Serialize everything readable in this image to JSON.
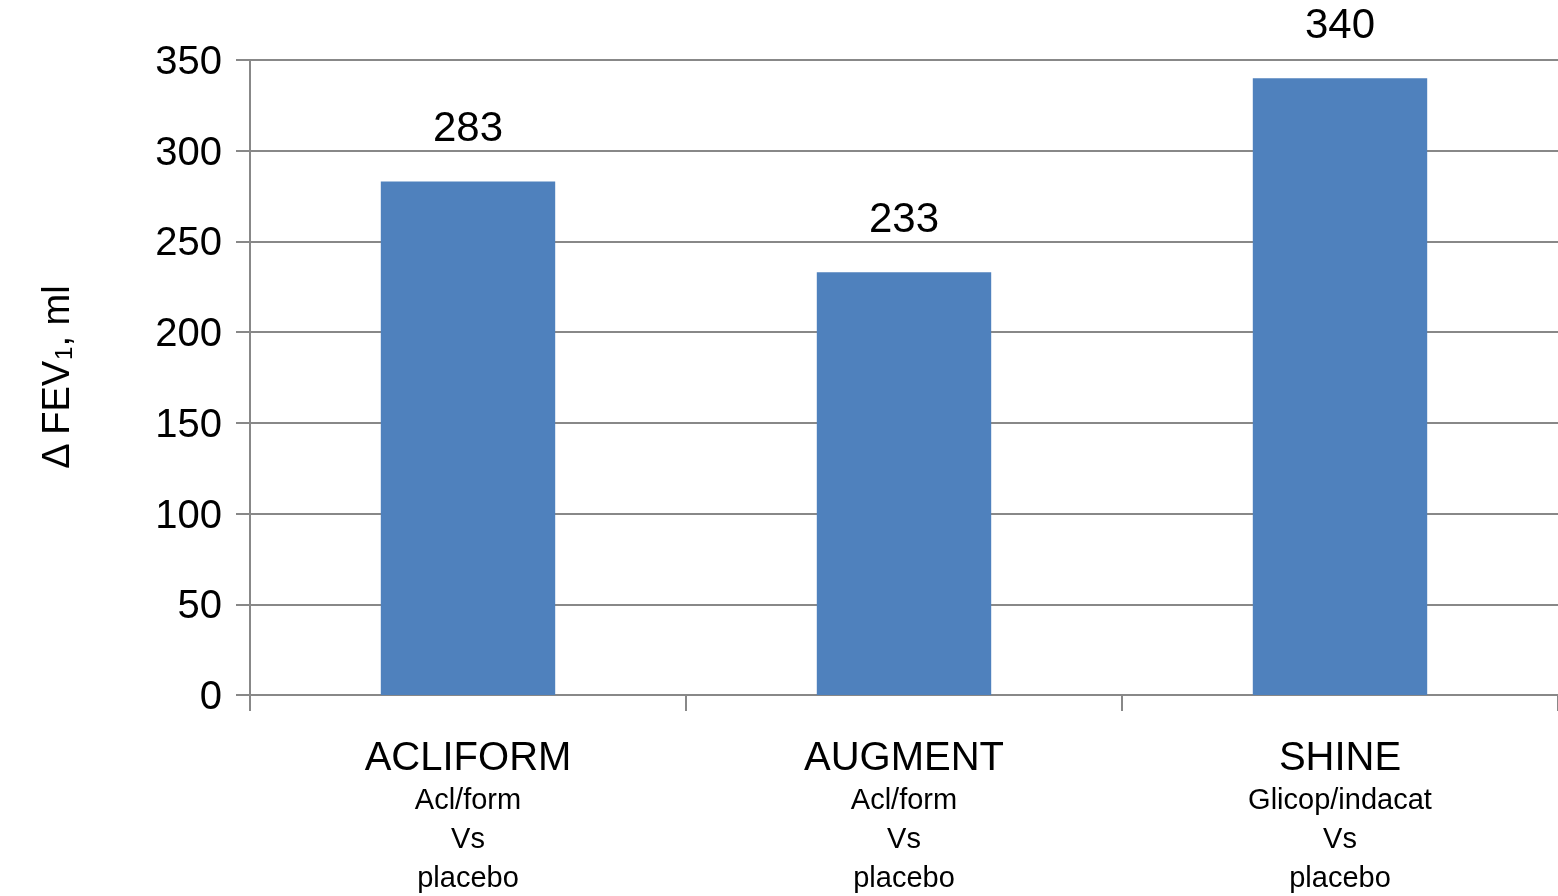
{
  "chart_data": {
    "type": "bar",
    "ylabel": "Δ FEV$_{1}$, ml",
    "categories": [
      "ACLIFORM\nAcl/form\nVs\nplacebo",
      "AUGMENT\nAcl/form\nVs\nplacebo",
      "SHINE\nGlicop/indacat\nVs\nplacebo"
    ],
    "values": [
      283,
      233,
      340
    ],
    "color": "#4f81bd",
    "ylim": [
      0,
      350
    ],
    "yticks": [
      0,
      50,
      100,
      150,
      200,
      250,
      300,
      350
    ],
    "grid": "y",
    "data_labels": true
  }
}
